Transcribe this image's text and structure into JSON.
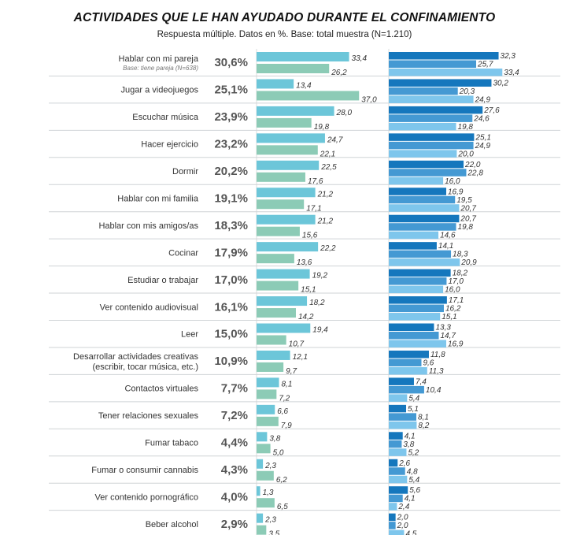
{
  "title": "ACTIVIDADES QUE LE HAN AYUDADO DURANTE EL CONFINAMIENTO",
  "subtitle": "Respuesta múltiple. Datos en %. Base: total muestra (N=1.210)",
  "colors": {
    "left_a": "#6cc6d9",
    "left_b": "#8ccbb6",
    "right_a": "#1577bd",
    "right_b": "#4499d3",
    "right_c": "#7ec6ec",
    "separator": "#cfd3d6"
  },
  "chart_data": {
    "type": "bar",
    "orientation": "horizontal",
    "categories": [
      {
        "label": "Hablar con mi pareja",
        "note": "Base: tiene pareja (N=638)",
        "total": "30,6%"
      },
      {
        "label": "Jugar a videojuegos",
        "total": "25,1%"
      },
      {
        "label": "Escuchar música",
        "total": "23,9%"
      },
      {
        "label": "Hacer ejercicio",
        "total": "23,2%"
      },
      {
        "label": "Dormir",
        "total": "20,2%"
      },
      {
        "label": "Hablar con mi familia",
        "total": "19,1%"
      },
      {
        "label": "Hablar con mis amigos/as",
        "total": "18,3%"
      },
      {
        "label": "Cocinar",
        "total": "17,9%"
      },
      {
        "label": "Estudiar o trabajar",
        "total": "17,0%"
      },
      {
        "label": "Ver contenido audiovisual",
        "total": "16,1%"
      },
      {
        "label": "Leer",
        "total": "15,0%"
      },
      {
        "label": "Desarrollar actividades creativas",
        "label2": "(escribir, tocar música, etc.)",
        "total": "10,9%"
      },
      {
        "label": "Contactos virtuales",
        "total": "7,7%"
      },
      {
        "label": "Tener relaciones sexuales",
        "total": "7,2%"
      },
      {
        "label": "Fumar tabaco",
        "total": "4,4%"
      },
      {
        "label": "Fumar o consumir cannabis",
        "total": "4,3%"
      },
      {
        "label": "Ver contenido pornográfico",
        "total": "4,0%"
      },
      {
        "label": "Beber alcohol",
        "total": "2,9%"
      }
    ],
    "left_series": [
      {
        "values": [
          33.4,
          13.4,
          28.0,
          24.7,
          22.5,
          21.2,
          21.2,
          22.2,
          19.2,
          18.2,
          19.4,
          12.1,
          8.1,
          6.6,
          3.8,
          2.3,
          1.3,
          2.3
        ],
        "labels": [
          "33,4",
          "13,4",
          "28,0",
          "24,7",
          "22,5",
          "21,2",
          "21,2",
          "22,2",
          "19,2",
          "18,2",
          "19,4",
          "12,1",
          "8,1",
          "6,6",
          "3,8",
          "2,3",
          "1,3",
          "2,3"
        ]
      },
      {
        "values": [
          26.2,
          37.0,
          19.8,
          22.1,
          17.6,
          17.1,
          15.6,
          13.6,
          15.1,
          14.2,
          10.7,
          9.7,
          7.2,
          7.9,
          5.0,
          6.2,
          6.5,
          3.5
        ],
        "labels": [
          "26,2",
          "37,0",
          "19,8",
          "22,1",
          "17,6",
          "17,1",
          "15,6",
          "13,6",
          "15,1",
          "14,2",
          "10,7",
          "9,7",
          "7,2",
          "7,9",
          "5,0",
          "6,2",
          "6,5",
          "3,5"
        ]
      }
    ],
    "right_series": [
      {
        "values": [
          32.3,
          30.2,
          27.6,
          25.1,
          22.0,
          16.9,
          20.7,
          14.1,
          18.2,
          17.1,
          13.3,
          11.8,
          7.4,
          5.1,
          4.1,
          2.6,
          5.6,
          2.0
        ],
        "labels": [
          "32,3",
          "30,2",
          "27,6",
          "25,1",
          "22,0",
          "16,9",
          "20,7",
          "14,1",
          "18,2",
          "17,1",
          "13,3",
          "11,8",
          "7,4",
          "5,1",
          "4,1",
          "2,6",
          "5,6",
          "2,0"
        ]
      },
      {
        "values": [
          25.7,
          20.3,
          24.6,
          24.9,
          22.8,
          19.5,
          19.8,
          18.3,
          17.0,
          16.2,
          14.7,
          9.6,
          10.4,
          8.1,
          3.8,
          4.8,
          4.1,
          2.0
        ],
        "labels": [
          "25,7",
          "20,3",
          "24,6",
          "24,9",
          "22,8",
          "19,5",
          "19,8",
          "18,3",
          "17,0",
          "16,2",
          "14,7",
          "9,6",
          "10,4",
          "8,1",
          "3,8",
          "4,8",
          "4,1",
          "2,0"
        ]
      },
      {
        "values": [
          33.4,
          24.9,
          19.8,
          20.0,
          16.0,
          20.7,
          14.6,
          20.9,
          16.0,
          15.1,
          16.9,
          11.3,
          5.4,
          8.2,
          5.2,
          5.4,
          2.4,
          4.5
        ],
        "labels": [
          "33,4",
          "24,9",
          "19,8",
          "20,0",
          "16,0",
          "20,7",
          "14,6",
          "20,9",
          "16,0",
          "15,1",
          "16,9",
          "11,3",
          "5,4",
          "8,2",
          "5,2",
          "5,4",
          "2,4",
          "4,5"
        ]
      }
    ]
  }
}
